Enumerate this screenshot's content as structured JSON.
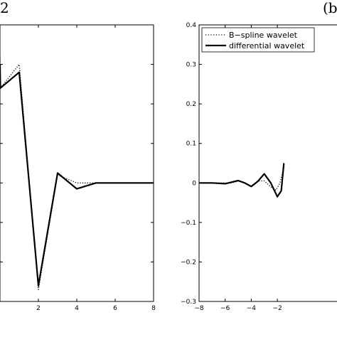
{
  "panel_labels": {
    "left": "2",
    "right": "(b"
  },
  "chart_data": [
    {
      "type": "line",
      "panel": "left",
      "xlim": [
        0,
        8
      ],
      "ylim": [
        -0.3,
        0.4
      ],
      "xticks": [
        2,
        4,
        6,
        8
      ],
      "xtick_labels": [
        "2",
        "4",
        "6",
        "8"
      ],
      "series": [
        {
          "style": "dotted",
          "x": [
            0,
            0.02,
            1,
            2,
            3,
            4,
            5,
            6,
            7,
            8
          ],
          "y": [
            0.32,
            0.24,
            0.3,
            -0.27,
            0.02,
            0.0,
            0.0,
            0.0,
            0.0,
            0.0
          ]
        },
        {
          "style": "solid",
          "x": [
            0,
            0.02,
            1,
            2,
            3,
            4,
            5,
            6,
            7,
            8
          ],
          "y": [
            0.3,
            0.24,
            0.28,
            -0.26,
            0.025,
            -0.015,
            0.0,
            0.0,
            0.0,
            0.0
          ]
        }
      ]
    },
    {
      "type": "line",
      "panel": "right",
      "xlim": [
        -8,
        2.9
      ],
      "ylim": [
        -0.3,
        0.4
      ],
      "yticks": [
        -0.3,
        -0.2,
        -0.1,
        0,
        0.1,
        0.2,
        0.3,
        0.4
      ],
      "ytick_labels": [
        "−0.3",
        "−0.2",
        "−0.1",
        "0",
        "0.1",
        "0.2",
        "0.3",
        "0.4"
      ],
      "xticks": [
        -8,
        -6,
        -4,
        -2
      ],
      "xtick_labels": [
        "−8",
        "−6",
        "−4",
        "−2"
      ],
      "legend": {
        "position": "top-left",
        "entries": [
          "B−spline wavelet",
          "differential wavelet"
        ]
      },
      "series": [
        {
          "name": "B−spline wavelet",
          "style": "dotted",
          "x": [
            -8,
            -7,
            -6,
            -5.5,
            -5,
            -4.5,
            -4,
            -3.5,
            -3,
            -2.5,
            -2.1,
            -1.8,
            -1.5
          ],
          "y": [
            0,
            0,
            0,
            0,
            0.005,
            0,
            -0.008,
            0.005,
            0.005,
            -0.01,
            -0.018,
            0.0,
            0.04
          ]
        },
        {
          "name": "differential wavelet",
          "style": "solid",
          "x": [
            -8,
            -7,
            -6,
            -5.5,
            -5,
            -4.5,
            -4,
            -3.5,
            -3,
            -2.5,
            -2,
            -1.7,
            -1.5
          ],
          "y": [
            0,
            0,
            -0.002,
            0.002,
            0.006,
            0,
            -0.009,
            0.004,
            0.023,
            0.0,
            -0.035,
            -0.02,
            0.05
          ]
        }
      ]
    }
  ]
}
